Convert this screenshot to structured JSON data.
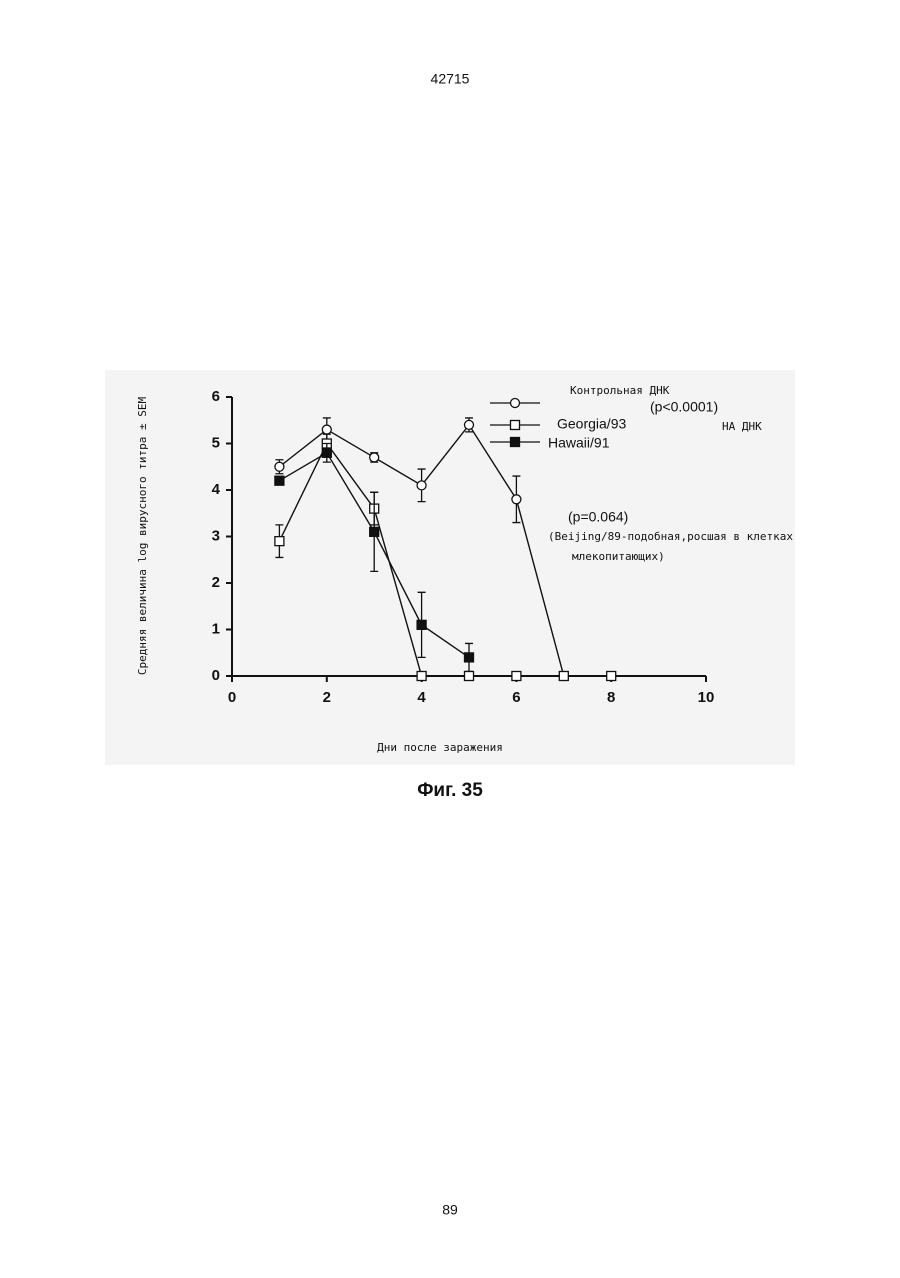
{
  "header": "42715",
  "chart_data": {
    "type": "line",
    "y_label": "Средняя величина log вирусного титра ± SEM",
    "x_label": "Дни после заражения",
    "xlim": [
      0,
      10
    ],
    "xticks": [
      0,
      2,
      4,
      6,
      8,
      10
    ],
    "ylim": [
      0,
      6
    ],
    "yticks": [
      0,
      1,
      2,
      3,
      4,
      5,
      6
    ],
    "series": [
      {
        "name": "Контрольная ДНК",
        "color": "#111111",
        "marker": "circle-open",
        "x": [
          1,
          2,
          3,
          4,
          5,
          6,
          7,
          8
        ],
        "values": [
          4.5,
          5.3,
          4.7,
          4.1,
          5.4,
          3.8,
          0,
          0
        ],
        "errors": [
          0.15,
          0.25,
          0.1,
          0.35,
          0.15,
          0.5,
          0,
          0
        ]
      },
      {
        "name": "Georgia/93",
        "color": "#111111",
        "marker": "square-open",
        "x": [
          1,
          2,
          3,
          4,
          5,
          6,
          7,
          8
        ],
        "values": [
          2.9,
          5.0,
          3.6,
          0,
          0,
          0,
          0,
          0
        ],
        "errors": [
          0.35,
          0.2,
          0.35,
          0,
          0,
          0,
          0,
          0
        ]
      },
      {
        "name": "Hawaii/91",
        "color": "#111111",
        "marker": "square-filled",
        "x": [
          1,
          2,
          3,
          4,
          5
        ],
        "values": [
          4.2,
          4.8,
          3.1,
          1.1,
          0.4
        ],
        "errors": [
          0.05,
          0.2,
          0.85,
          0.7,
          0.3
        ]
      }
    ],
    "annotations": [
      "(p<0.0001)",
      "НА ДНК",
      "(p=0.064)",
      "(Beijing/89-подобная,росшая в клетках",
      "млекопитающих)"
    ]
  },
  "caption": "Фиг. 35",
  "page_number": "89"
}
